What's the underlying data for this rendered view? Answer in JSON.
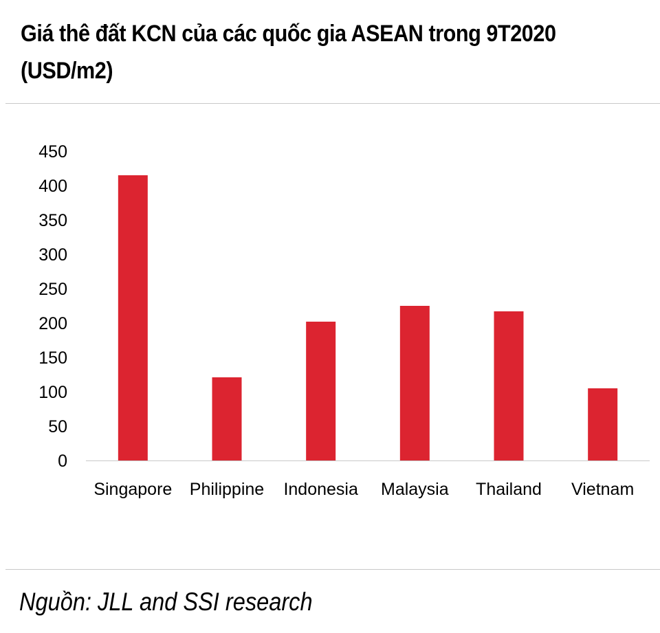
{
  "chart_data": {
    "type": "bar",
    "title": "Giá thê đất KCN của các quốc gia ASEAN trong 9T2020 (USD/m2)",
    "xlabel": "",
    "ylabel": "",
    "categories": [
      "Singapore",
      "Philippine",
      "Indonesia",
      "Malaysia",
      "Thailand",
      "Vietnam"
    ],
    "values": [
      415,
      121,
      202,
      225,
      217,
      105
    ],
    "ylim": [
      0,
      450
    ],
    "yticks": [
      "0",
      "50",
      "100",
      "150",
      "200",
      "250",
      "300",
      "350",
      "400",
      "450"
    ],
    "bar_color": "#dc2430",
    "grid": false,
    "legend": "none"
  },
  "source": "Nguồn: JLL and SSI research"
}
